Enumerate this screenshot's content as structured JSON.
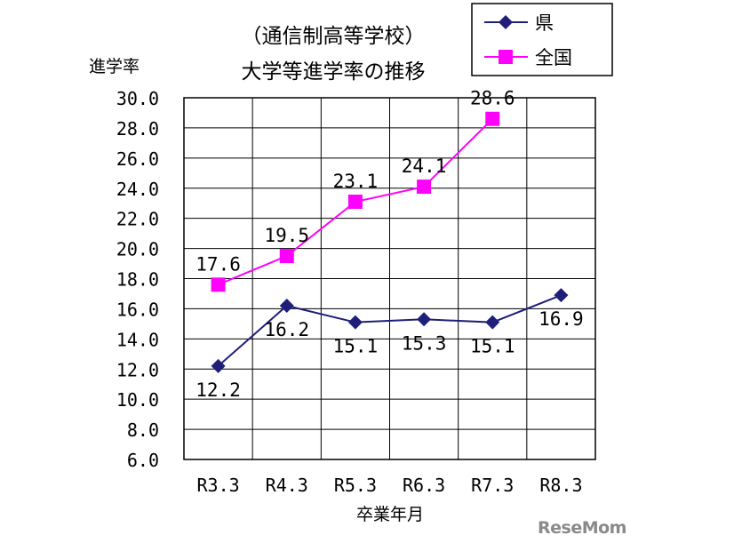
{
  "chart_data": {
    "type": "line",
    "title_line1": "（通信制高等学校）",
    "title_line2": "大学等進学率の推移",
    "ylabel": "進学率",
    "xlabel": "卒業年月",
    "categories": [
      "R3.3",
      "R4.3",
      "R5.3",
      "R6.3",
      "R7.3",
      "R8.3"
    ],
    "ylim": [
      6.0,
      30.0
    ],
    "yticks": [
      "30.0",
      "28.0",
      "26.0",
      "24.0",
      "22.0",
      "20.0",
      "18.0",
      "16.0",
      "14.0",
      "12.0",
      "10.0",
      "8.0",
      "6.0"
    ],
    "grid": true,
    "legend_position": "top-right",
    "series": [
      {
        "name": "県",
        "color": "#1f1f7a",
        "marker": "diamond",
        "values": [
          12.2,
          16.2,
          15.1,
          15.3,
          15.1,
          16.9
        ],
        "labels": [
          "12.2",
          "16.2",
          "15.1",
          "15.3",
          "15.1",
          "16.9"
        ],
        "label_position": "below"
      },
      {
        "name": "全国",
        "color": "#ff00ff",
        "marker": "square",
        "values": [
          17.6,
          19.5,
          23.1,
          24.1,
          28.6,
          null
        ],
        "labels": [
          "17.6",
          "19.5",
          "23.1",
          "24.1",
          "28.6",
          ""
        ],
        "label_position": "above"
      }
    ]
  },
  "watermark": "ReseMom"
}
